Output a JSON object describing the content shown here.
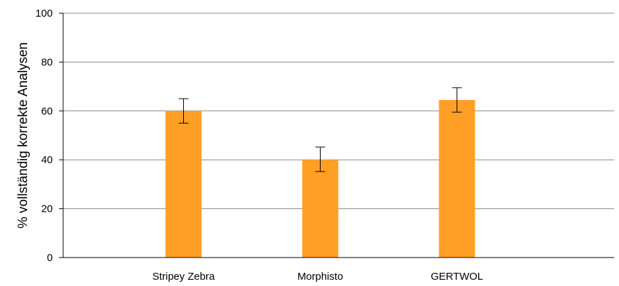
{
  "chart_data": {
    "type": "bar",
    "title": "",
    "xlabel": "",
    "ylabel": "% vollständig korrekte Analysen",
    "categories": [
      "Stripey Zebra",
      "Morphisto",
      "GERTWOL"
    ],
    "values": [
      60,
      40,
      64.5
    ],
    "error_bars": [
      {
        "low": 55,
        "high": 65
      },
      {
        "low": 35.2,
        "high": 45.2
      },
      {
        "low": 59.5,
        "high": 69.5
      }
    ],
    "ylim": [
      0,
      100
    ],
    "yticks": [
      "0",
      "20",
      "40",
      "60",
      "80",
      "100"
    ],
    "grid": true,
    "legend": "none",
    "bar_color": "#ff9f26",
    "gridline_color": "#888888",
    "axis_color": "#000000"
  }
}
